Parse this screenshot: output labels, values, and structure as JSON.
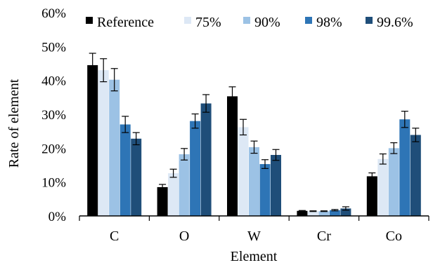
{
  "chart_data": {
    "type": "bar",
    "title": "",
    "xlabel": "Element",
    "ylabel": "Rate of element",
    "categories": [
      "C",
      "O",
      "W",
      "Cr",
      "Co"
    ],
    "ylim": [
      0,
      60
    ],
    "y_ticks": [
      "0%",
      "10%",
      "20%",
      "30%",
      "40%",
      "50%",
      "60%"
    ],
    "y_tick_values": [
      0,
      10,
      20,
      30,
      40,
      50,
      60
    ],
    "grid": false,
    "legend_position": "top",
    "series": [
      {
        "name": "Reference",
        "color": "#000000",
        "values": [
          44.5,
          8.5,
          35.3,
          1.5,
          11.7
        ],
        "errors": [
          3.5,
          0.8,
          2.8,
          0.1,
          1.0
        ]
      },
      {
        "name": "75%",
        "color": "#dde8f5",
        "values": [
          43.0,
          12.6,
          26.2,
          1.4,
          16.8
        ],
        "errors": [
          3.4,
          1.2,
          2.3,
          0.1,
          1.5
        ]
      },
      {
        "name": "90%",
        "color": "#9cc2e5",
        "values": [
          40.2,
          18.2,
          20.3,
          1.4,
          20.0
        ],
        "errors": [
          3.3,
          1.7,
          1.8,
          0.1,
          1.6
        ]
      },
      {
        "name": "98%",
        "color": "#2e75b6",
        "values": [
          27.0,
          28.0,
          15.3,
          1.7,
          28.5
        ],
        "errors": [
          2.4,
          2.1,
          1.3,
          0.2,
          2.4
        ]
      },
      {
        "name": "99.6%",
        "color": "#1f4e79",
        "values": [
          22.8,
          33.2,
          18.0,
          2.2,
          23.9
        ],
        "errors": [
          1.8,
          2.6,
          1.6,
          0.5,
          2.0
        ]
      }
    ]
  }
}
